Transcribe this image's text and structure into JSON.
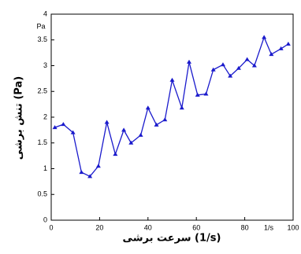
{
  "chart_data": {
    "type": "line",
    "x_label": "سرعت برشی (1/s)",
    "y_label": "تنش برشی (Pa)",
    "annotations": [
      "Pa",
      "1/s"
    ],
    "x": [
      1.5,
      5,
      9,
      12.5,
      16,
      19.5,
      23,
      26.5,
      30,
      33,
      37,
      40,
      43.5,
      47,
      50,
      54,
      57,
      60.5,
      64,
      67,
      71,
      74,
      77.5,
      81,
      84,
      88,
      91,
      95,
      98
    ],
    "series": [
      {
        "color": "#1a1acc",
        "values": [
          1.8,
          1.86,
          1.7,
          0.93,
          0.85,
          1.05,
          1.9,
          1.28,
          1.75,
          1.5,
          1.65,
          2.18,
          1.85,
          1.95,
          2.72,
          2.18,
          3.07,
          2.43,
          2.45,
          2.92,
          3.02,
          2.8,
          2.95,
          3.12,
          3.0,
          3.55,
          3.22,
          3.33,
          3.42
        ]
      }
    ],
    "xlim": [
      0,
      100
    ],
    "xticks": [
      0,
      20,
      40,
      60,
      80,
      100
    ],
    "ylim": [
      0,
      4
    ],
    "yticks": [
      0,
      0.5,
      1,
      1.5,
      2,
      2.5,
      3,
      3.5,
      4
    ],
    "grid": false
  }
}
